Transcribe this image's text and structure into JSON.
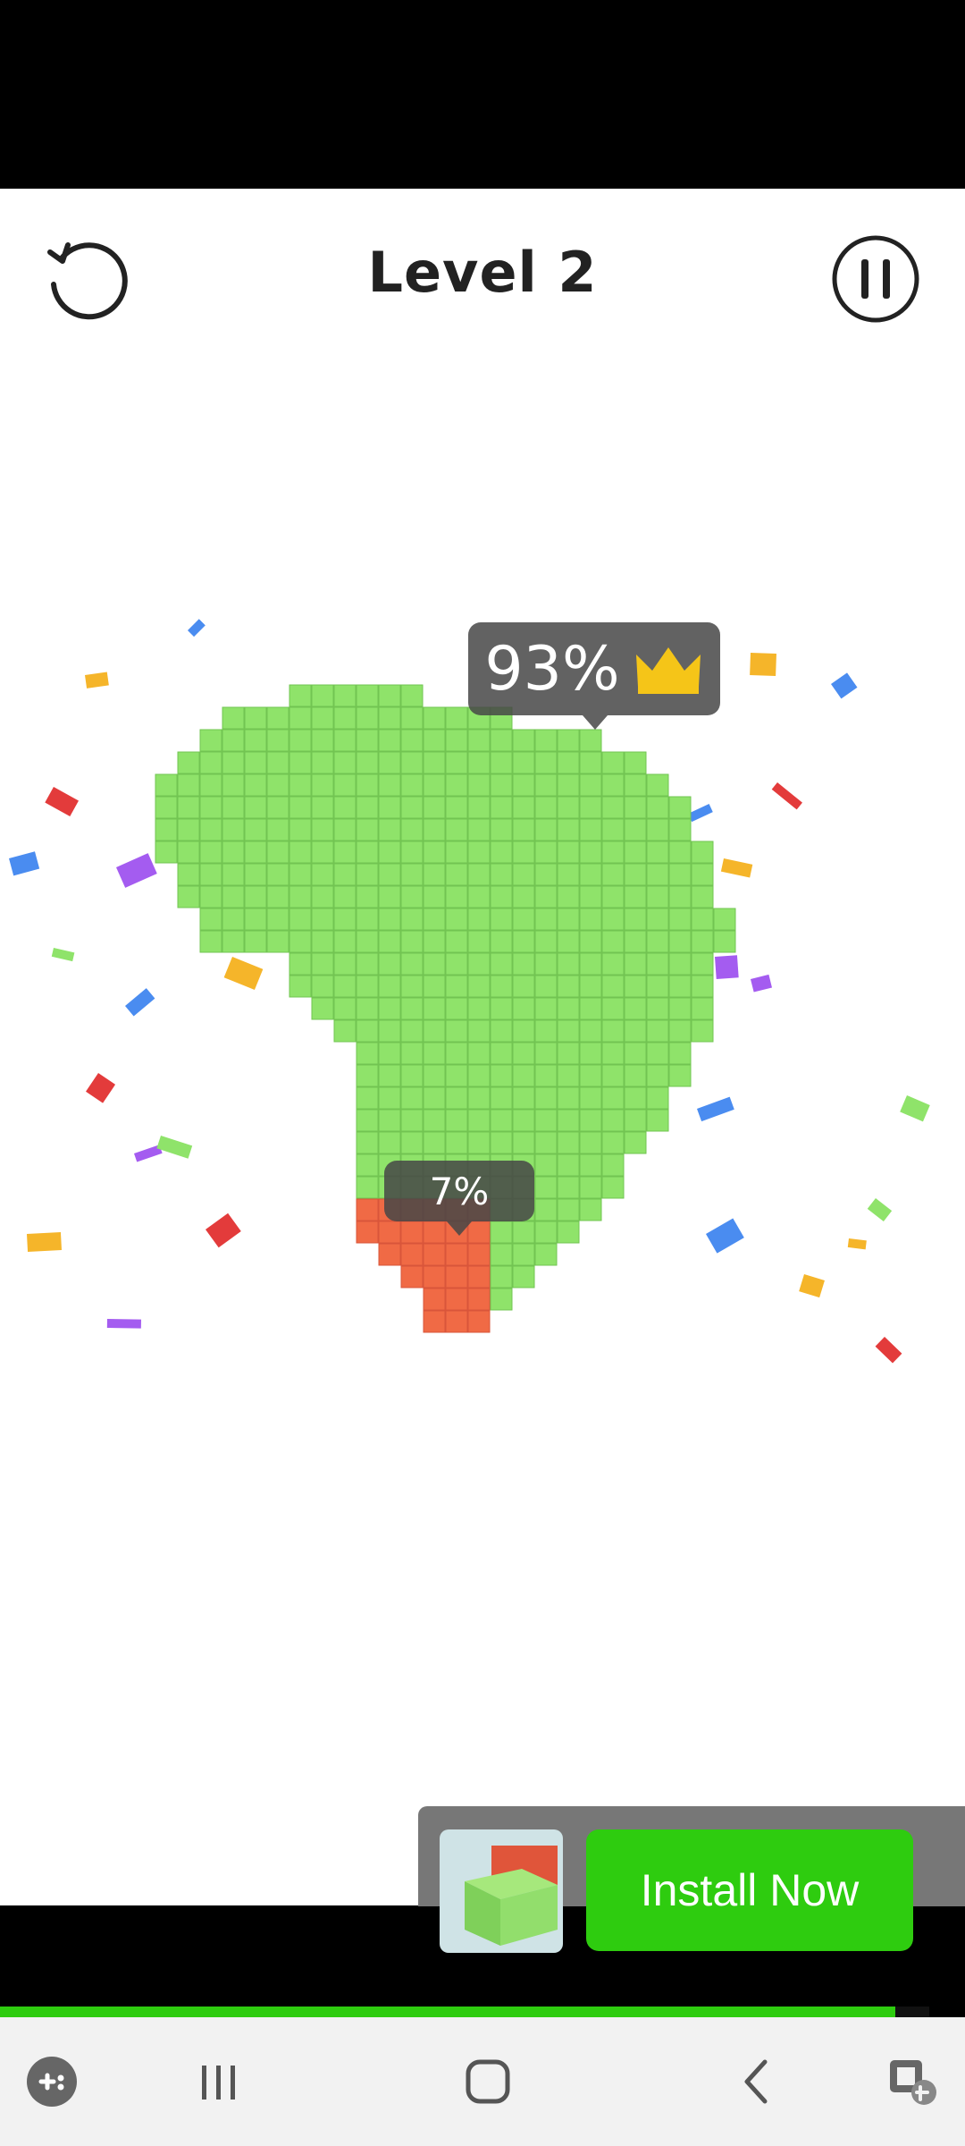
{
  "header": {
    "level_title": "Level 2",
    "restart_icon": "restart-icon",
    "pause_icon": "pause-icon"
  },
  "board": {
    "player_percentage": "93%",
    "enemy_percentage": "7%",
    "crown_icon": "crown-icon",
    "player_color": "#8fe36a",
    "enemy_color": "#f06a45"
  },
  "ad": {
    "install_label": "Install Now",
    "button_color": "#2ecc0f"
  },
  "progress": {
    "fraction": 0.963,
    "color": "#2ecc0f"
  },
  "navbar": {
    "icons": [
      "game-launcher-icon",
      "recent-apps-icon",
      "home-icon",
      "back-icon",
      "screenshot-assist-icon"
    ]
  }
}
